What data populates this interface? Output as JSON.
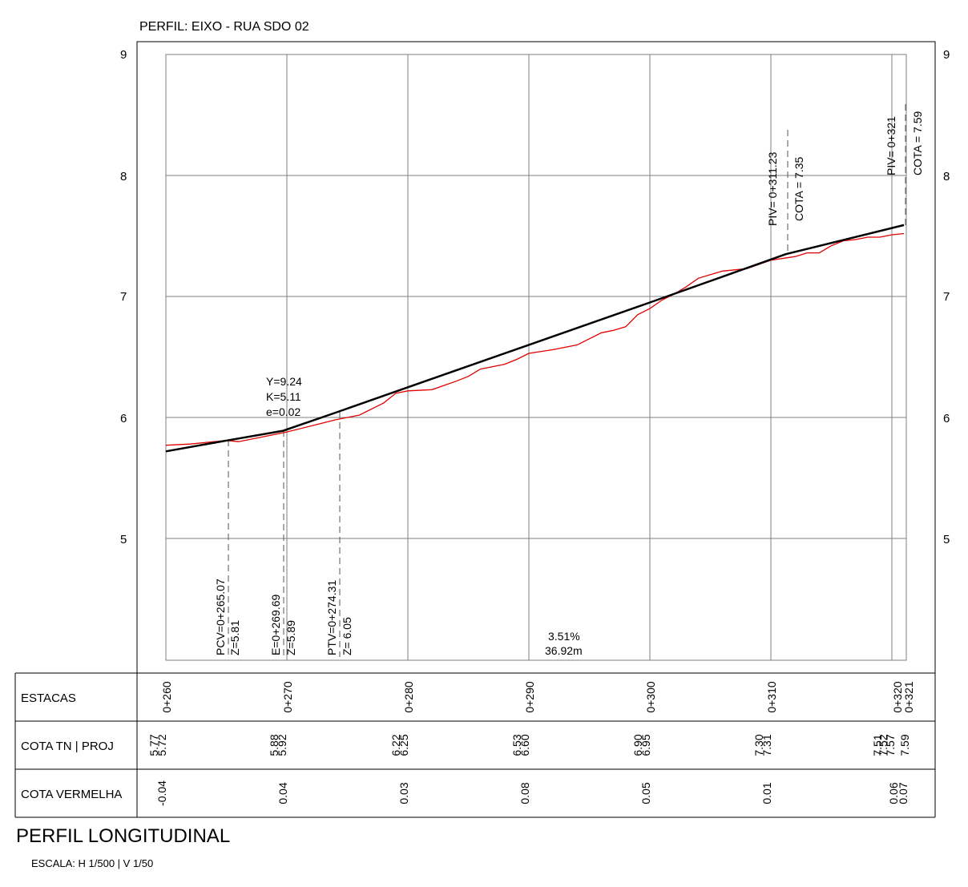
{
  "header": {
    "title": "PERFIL: EIXO - RUA SDO 02"
  },
  "y_axis": {
    "labels": [
      "9",
      "8",
      "7",
      "6",
      "5"
    ]
  },
  "annotations": {
    "curve_params": [
      "Y=9.24",
      "K=5.11",
      "e=0.02"
    ],
    "pcv": [
      "PCV=0+265.07",
      "Z=5.81"
    ],
    "e_point": [
      "E=0+269.69",
      "Z=5.89"
    ],
    "ptv": [
      "PTV=0+274.31",
      "Z= 6.05"
    ],
    "slope": [
      "3.51%",
      "36.92m"
    ],
    "piv1": [
      "PIV= 0+311.23",
      "COTA = 7.35"
    ],
    "piv2": [
      "PIV= 0+321",
      "COTA = 7.59"
    ]
  },
  "table": {
    "row_labels": [
      "ESTACAS",
      "COTA TN | PROJ",
      "COTA VERMELHA"
    ],
    "stations": [
      "0+260",
      "0+270",
      "0+280",
      "0+290",
      "0+300",
      "0+310",
      "0+320",
      "0+321"
    ],
    "cota_tn": [
      "5.77",
      "5.88",
      "6.22",
      "6.53",
      "6.90",
      "7.30",
      "7.51",
      "7.52"
    ],
    "cota_proj": [
      "5.72",
      "5.92",
      "6.25",
      "6.60",
      "6.95",
      "7.31",
      "7.57",
      "7.59"
    ],
    "cota_vermelha": [
      "-0.04",
      "0.04",
      "0.03",
      "0.08",
      "0.05",
      "0.01",
      "0.06",
      "0.07"
    ]
  },
  "footer": {
    "title": "PERFIL LONGITUDINAL",
    "scale": "ESCALA: H 1/500 | V 1/50"
  },
  "chart_data": {
    "type": "line",
    "x_range": [
      260,
      321
    ],
    "y_range": [
      4,
      9
    ],
    "series": [
      {
        "color": "#000000",
        "points": [
          [
            260,
            5.72
          ],
          [
            265.07,
            5.81
          ],
          [
            269.69,
            5.89
          ],
          [
            274.31,
            6.05
          ],
          [
            280,
            6.25
          ],
          [
            290,
            6.6
          ],
          [
            300,
            6.95
          ],
          [
            311.23,
            7.35
          ],
          [
            321,
            7.59
          ]
        ]
      },
      {
        "color": "#e00000",
        "points": [
          [
            260,
            5.77
          ],
          [
            262,
            5.78
          ],
          [
            265,
            5.81
          ],
          [
            266,
            5.8
          ],
          [
            268,
            5.84
          ],
          [
            270,
            5.88
          ],
          [
            272,
            5.93
          ],
          [
            274,
            5.98
          ],
          [
            276,
            6.02
          ],
          [
            278,
            6.12
          ],
          [
            279,
            6.2
          ],
          [
            280,
            6.22
          ],
          [
            282,
            6.23
          ],
          [
            284,
            6.3
          ],
          [
            285,
            6.34
          ],
          [
            286,
            6.4
          ],
          [
            288,
            6.44
          ],
          [
            289,
            6.48
          ],
          [
            290,
            6.53
          ],
          [
            292,
            6.56
          ],
          [
            293,
            6.58
          ],
          [
            294,
            6.6
          ],
          [
            295,
            6.65
          ],
          [
            296,
            6.7
          ],
          [
            297,
            6.72
          ],
          [
            298,
            6.75
          ],
          [
            299,
            6.85
          ],
          [
            300,
            6.9
          ],
          [
            301,
            6.97
          ],
          [
            302,
            7.02
          ],
          [
            303,
            7.08
          ],
          [
            304,
            7.15
          ],
          [
            305,
            7.18
          ],
          [
            306,
            7.21
          ],
          [
            308,
            7.23
          ],
          [
            310,
            7.3
          ],
          [
            312,
            7.33
          ],
          [
            313,
            7.36
          ],
          [
            314,
            7.36
          ],
          [
            315,
            7.42
          ],
          [
            316,
            7.46
          ],
          [
            317,
            7.47
          ],
          [
            318,
            7.49
          ],
          [
            319,
            7.49
          ],
          [
            320,
            7.51
          ],
          [
            321,
            7.52
          ]
        ]
      }
    ]
  }
}
